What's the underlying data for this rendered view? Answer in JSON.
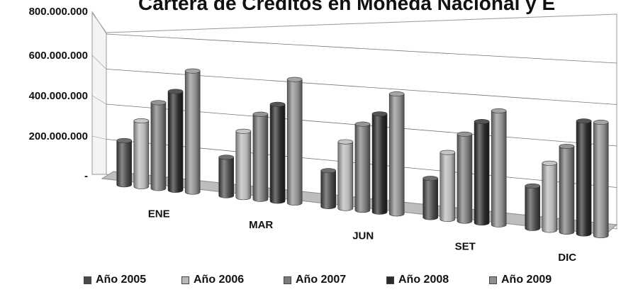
{
  "chart_data": {
    "type": "bar",
    "title": "Cartera de Créditos en Moneda Nacional y E",
    "categories": [
      "ENE",
      "MAR",
      "JUN",
      "SET",
      "DIC"
    ],
    "y_tick_labels": [
      "-",
      "200.000.000",
      "400.000.000",
      "600.000.000",
      "800.000.000"
    ],
    "ylim": [
      0,
      800000000
    ],
    "grid": true,
    "legend_position": "bottom",
    "series": [
      {
        "name": "Año 2005",
        "color": "#4a4a4a",
        "values": [
          250000000,
          210000000,
          190000000,
          200000000,
          210000000
        ]
      },
      {
        "name": "Año 2006",
        "color": "#b8b8b8",
        "values": [
          370000000,
          360000000,
          350000000,
          340000000,
          330000000
        ]
      },
      {
        "name": "Año 2007",
        "color": "#7a7a7a",
        "values": [
          480000000,
          460000000,
          450000000,
          440000000,
          420000000
        ]
      },
      {
        "name": "Año 2008",
        "color": "#2a2a2a",
        "values": [
          550000000,
          520000000,
          510000000,
          510000000,
          550000000
        ]
      },
      {
        "name": "Año 2009",
        "color": "#8e8e8e",
        "values": [
          670000000,
          660000000,
          620000000,
          570000000,
          550000000
        ]
      }
    ]
  }
}
